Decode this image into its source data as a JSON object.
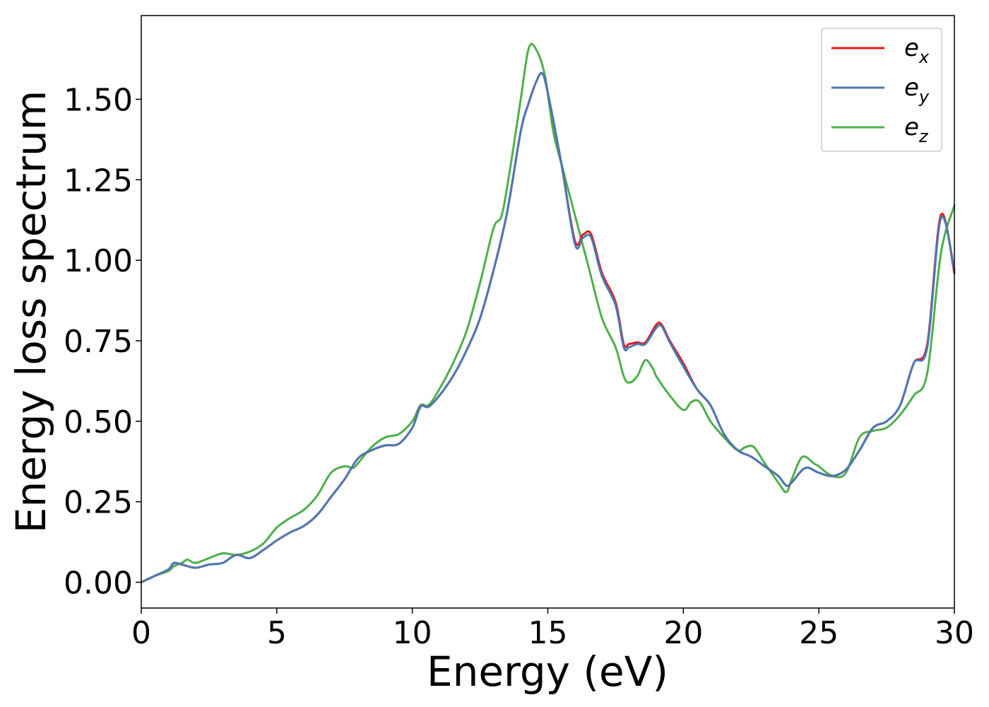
{
  "chart_data": {
    "type": "line",
    "title": "",
    "xlabel": "Energy (eV)",
    "ylabel": "Energy loss spectrum",
    "xlim": [
      0,
      30
    ],
    "ylim": [
      -0.08,
      1.76
    ],
    "xticks": [
      0,
      5,
      10,
      15,
      20,
      25,
      30
    ],
    "xtick_labels": [
      "0",
      "5",
      "10",
      "15",
      "20",
      "25",
      "30"
    ],
    "yticks": [
      0.0,
      0.25,
      0.5,
      0.75,
      1.0,
      1.25,
      1.5
    ],
    "ytick_labels": [
      "0.00",
      "0.25",
      "0.50",
      "0.75",
      "1.00",
      "1.25",
      "1.50"
    ],
    "grid": false,
    "legend_position": "top-right",
    "series": [
      {
        "name": "e_x",
        "legend_base": "e",
        "legend_sub": "x",
        "color": "#e41a1c",
        "x": [
          0,
          0.5,
          1.0,
          1.2,
          1.5,
          2.0,
          2.5,
          3.0,
          3.5,
          4.0,
          4.5,
          5.0,
          5.5,
          6.0,
          6.5,
          7.0,
          7.5,
          8.0,
          8.5,
          9.0,
          9.5,
          10.0,
          10.3,
          10.6,
          11.0,
          11.5,
          12.0,
          12.5,
          13.0,
          13.5,
          14.0,
          14.3,
          14.6,
          14.8,
          15.0,
          15.5,
          16.0,
          16.3,
          16.6,
          17.0,
          17.5,
          17.8,
          18.0,
          18.3,
          18.6,
          19.0,
          19.2,
          19.5,
          20.0,
          20.5,
          21.0,
          21.5,
          22.0,
          22.5,
          23.0,
          23.5,
          23.8,
          24.0,
          24.5,
          25.0,
          25.5,
          26.0,
          26.5,
          27.0,
          27.5,
          28.0,
          28.5,
          29.0,
          29.5,
          30.0
        ],
        "y": [
          0.0,
          0.02,
          0.04,
          0.06,
          0.055,
          0.045,
          0.055,
          0.06,
          0.085,
          0.075,
          0.1,
          0.13,
          0.155,
          0.175,
          0.21,
          0.265,
          0.32,
          0.385,
          0.41,
          0.425,
          0.43,
          0.48,
          0.545,
          0.545,
          0.58,
          0.64,
          0.72,
          0.82,
          0.97,
          1.15,
          1.4,
          1.49,
          1.56,
          1.58,
          1.52,
          1.3,
          1.06,
          1.08,
          1.08,
          0.96,
          0.87,
          0.74,
          0.74,
          0.745,
          0.745,
          0.8,
          0.8,
          0.75,
          0.68,
          0.6,
          0.55,
          0.46,
          0.41,
          0.39,
          0.36,
          0.33,
          0.3,
          0.31,
          0.355,
          0.34,
          0.33,
          0.35,
          0.41,
          0.48,
          0.5,
          0.55,
          0.68,
          0.74,
          1.14,
          0.96
        ]
      },
      {
        "name": "e_y",
        "legend_base": "e",
        "legend_sub": "y",
        "color": "#4a78b4",
        "x": [
          0,
          0.5,
          1.0,
          1.2,
          1.5,
          2.0,
          2.5,
          3.0,
          3.5,
          4.0,
          4.5,
          5.0,
          5.5,
          6.0,
          6.5,
          7.0,
          7.5,
          8.0,
          8.5,
          9.0,
          9.5,
          10.0,
          10.3,
          10.6,
          11.0,
          11.5,
          12.0,
          12.5,
          13.0,
          13.5,
          14.0,
          14.3,
          14.6,
          14.8,
          15.0,
          15.5,
          16.0,
          16.3,
          16.6,
          17.0,
          17.5,
          17.8,
          18.0,
          18.3,
          18.6,
          19.0,
          19.2,
          19.5,
          20.0,
          20.5,
          21.0,
          21.5,
          22.0,
          22.5,
          23.0,
          23.5,
          23.8,
          24.0,
          24.5,
          25.0,
          25.5,
          26.0,
          26.5,
          27.0,
          27.5,
          28.0,
          28.5,
          29.0,
          29.5,
          30.0
        ],
        "y": [
          0.0,
          0.02,
          0.04,
          0.06,
          0.055,
          0.045,
          0.055,
          0.06,
          0.085,
          0.075,
          0.1,
          0.13,
          0.155,
          0.175,
          0.21,
          0.265,
          0.32,
          0.385,
          0.41,
          0.425,
          0.43,
          0.48,
          0.545,
          0.545,
          0.58,
          0.64,
          0.72,
          0.82,
          0.97,
          1.15,
          1.4,
          1.49,
          1.56,
          1.58,
          1.52,
          1.3,
          1.05,
          1.07,
          1.07,
          0.95,
          0.86,
          0.73,
          0.73,
          0.74,
          0.74,
          0.79,
          0.795,
          0.745,
          0.67,
          0.6,
          0.55,
          0.46,
          0.41,
          0.39,
          0.36,
          0.33,
          0.3,
          0.31,
          0.355,
          0.34,
          0.33,
          0.35,
          0.41,
          0.48,
          0.5,
          0.55,
          0.68,
          0.73,
          1.13,
          0.97
        ]
      },
      {
        "name": "e_z",
        "legend_base": "e",
        "legend_sub": "z",
        "color": "#4daf4a",
        "x": [
          0,
          0.5,
          1.0,
          1.2,
          1.5,
          1.7,
          2.0,
          2.5,
          3.0,
          3.5,
          4.0,
          4.5,
          5.0,
          5.5,
          6.0,
          6.5,
          7.0,
          7.5,
          7.8,
          8.0,
          8.5,
          9.0,
          9.5,
          10.0,
          10.3,
          10.6,
          11.0,
          11.5,
          12.0,
          12.5,
          13.0,
          13.3,
          13.6,
          14.0,
          14.3,
          14.6,
          14.9,
          15.2,
          15.5,
          16.0,
          16.5,
          17.0,
          17.5,
          17.8,
          18.0,
          18.3,
          18.6,
          18.9,
          19.0,
          19.5,
          20.0,
          20.3,
          20.6,
          21.0,
          21.5,
          22.0,
          22.3,
          22.6,
          23.0,
          23.5,
          23.8,
          24.0,
          24.3,
          24.5,
          24.8,
          25.0,
          25.5,
          26.0,
          26.5,
          27.0,
          27.5,
          28.0,
          28.5,
          29.0,
          29.5,
          30.0
        ],
        "y": [
          0.0,
          0.02,
          0.035,
          0.05,
          0.06,
          0.07,
          0.06,
          0.075,
          0.09,
          0.085,
          0.095,
          0.12,
          0.17,
          0.2,
          0.225,
          0.27,
          0.34,
          0.36,
          0.355,
          0.37,
          0.42,
          0.45,
          0.46,
          0.5,
          0.55,
          0.55,
          0.6,
          0.68,
          0.78,
          0.93,
          1.1,
          1.14,
          1.28,
          1.5,
          1.66,
          1.65,
          1.57,
          1.4,
          1.3,
          1.14,
          0.98,
          0.82,
          0.73,
          0.64,
          0.62,
          0.64,
          0.69,
          0.66,
          0.64,
          0.58,
          0.535,
          0.56,
          0.56,
          0.5,
          0.45,
          0.41,
          0.42,
          0.42,
          0.37,
          0.31,
          0.28,
          0.32,
          0.38,
          0.39,
          0.37,
          0.36,
          0.33,
          0.34,
          0.45,
          0.47,
          0.48,
          0.52,
          0.58,
          0.65,
          1.02,
          1.17
        ]
      }
    ]
  }
}
